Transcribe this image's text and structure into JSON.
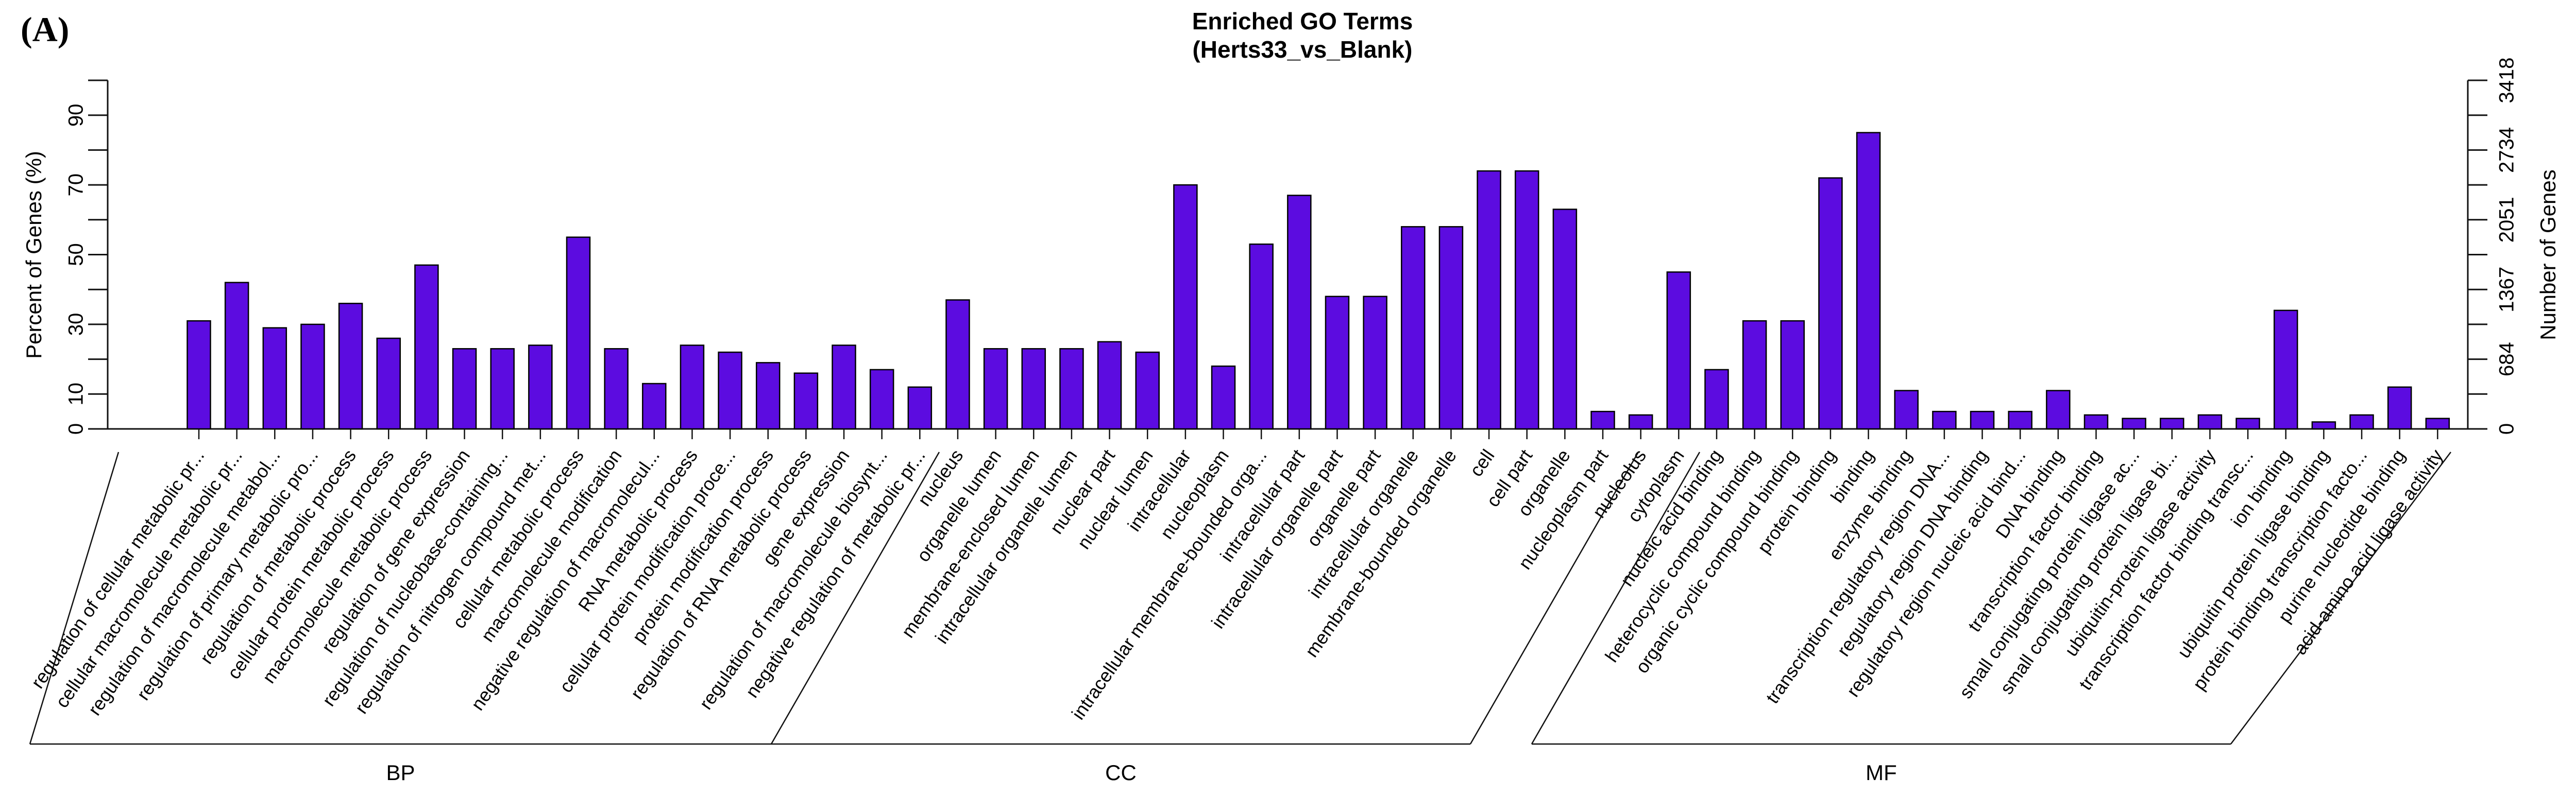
{
  "figure": {
    "panel_label": "(A)",
    "title_line1": "Enriched GO Terms",
    "title_line2": "(Herts33_vs_Blank)"
  },
  "chart_data": {
    "type": "bar",
    "title": "Enriched GO Terms (Herts33_vs_Blank)",
    "ylabel_left": "Percent of Genes (%)",
    "ylabel_right": "Number of Genes",
    "ylim": [
      0,
      100
    ],
    "grid": false,
    "legend_position": "none",
    "bar_color": "#5c0ce0",
    "bar_stroke": "#000000",
    "left_axis_tick_percents": [
      0,
      10,
      20,
      30,
      40,
      50,
      60,
      70,
      80,
      90,
      100
    ],
    "left_axis_label_percents": [
      0,
      10,
      30,
      50,
      70,
      90
    ],
    "left_axis_labels": [
      "0",
      "10",
      "30",
      "50",
      "70",
      "90"
    ],
    "right_axis_tick_percents": [
      0,
      10,
      20,
      30,
      40,
      50,
      60,
      70,
      80,
      90,
      100
    ],
    "right_axis_label_percents": [
      0,
      20,
      40,
      60,
      80,
      100
    ],
    "right_axis_labels": [
      "0",
      "684",
      "1367",
      "2051",
      "2734",
      "3418"
    ],
    "groups": [
      {
        "label": "BP",
        "categories": [
          "regulation of cellular metabolic pr...",
          "cellular macromolecule metabolic pr...",
          "regulation of macromolecule metabol...",
          "regulation of primary metabolic pro...",
          "regulation of metabolic process",
          "cellular protein metabolic process",
          "macromolecule metabolic process",
          "regulation of gene expression",
          "regulation of nucleobase-containing...",
          "regulation of nitrogen compound met...",
          "cellular metabolic process",
          "macromolecule modification",
          "negative regulation of macromolecul...",
          "RNA metabolic process",
          "cellular protein modification proce...",
          "protein modification process",
          "regulation of RNA metabolic process",
          "gene expression",
          "regulation of macromolecule biosynt...",
          "negative regulation of metabolic pr..."
        ],
        "values": [
          31,
          42,
          29,
          30,
          36,
          26,
          47,
          23,
          23,
          24,
          55,
          23,
          13,
          24,
          22,
          19,
          16,
          24,
          17,
          12
        ]
      },
      {
        "label": "CC",
        "categories": [
          "nucleus",
          "organelle lumen",
          "membrane-enclosed lumen",
          "intracellular organelle lumen",
          "nuclear part",
          "nuclear lumen",
          "intracellular",
          "nucleoplasm",
          "intracellular membrane-bounded orga...",
          "intracellular part",
          "intracellular organelle part",
          "organelle part",
          "intracellular organelle",
          "membrane-bounded organelle",
          "cell",
          "cell part",
          "organelle",
          "nucleoplasm part",
          "nucleolus",
          "cytoplasm"
        ],
        "values": [
          37,
          23,
          23,
          23,
          25,
          22,
          70,
          18,
          53,
          67,
          38,
          38,
          58,
          58,
          74,
          74,
          63,
          5,
          4,
          45
        ]
      },
      {
        "label": "MF",
        "categories": [
          "nucleic acid binding",
          "heterocyclic compound binding",
          "organic cyclic compound binding",
          "protein binding",
          "binding",
          "enzyme binding",
          "transcription regulatory region DNA...",
          "regulatory region DNA binding",
          "regulatory region nucleic acid bind...",
          "DNA binding",
          "transcription factor binding",
          "small conjugating protein ligase ac...",
          "small conjugating protein ligase bi...",
          "ubiquitin-protein ligase activity",
          "transcription factor binding transc...",
          "ion binding",
          "ubiquitin protein ligase binding",
          "protein binding transcription facto...",
          "purine nucleotide binding",
          "acid-amino acid ligase activity"
        ],
        "values": [
          17,
          31,
          31,
          72,
          85,
          11,
          5,
          5,
          5,
          11,
          4,
          3,
          3,
          4,
          3,
          34,
          2,
          4,
          12,
          3
        ]
      }
    ]
  }
}
